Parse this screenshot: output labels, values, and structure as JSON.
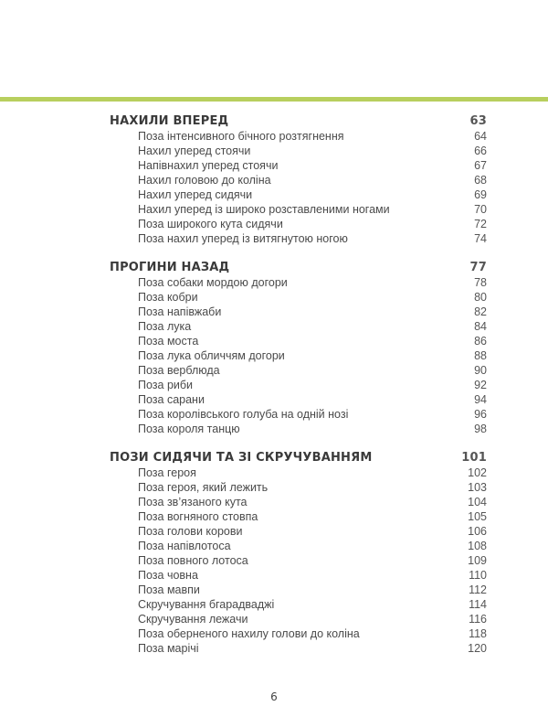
{
  "accent_color": "#b8cf5e",
  "sections": [
    {
      "title": "НАХИЛИ ВПЕРЕД",
      "page": "63",
      "items": [
        {
          "title": "Поза інтенсивного бічного розтягнення",
          "page": "64"
        },
        {
          "title": "Нахил уперед стоячи",
          "page": "66"
        },
        {
          "title": "Напівнахил уперед стоячи",
          "page": "67"
        },
        {
          "title": "Нахил головою до коліна",
          "page": "68"
        },
        {
          "title": "Нахил уперед сидячи",
          "page": "69"
        },
        {
          "title": "Нахил уперед із широко розставленими ногами",
          "page": "70"
        },
        {
          "title": "Поза широкого кута сидячи",
          "page": "72"
        },
        {
          "title": "Поза нахил уперед із витягнутою ногою",
          "page": "74"
        }
      ]
    },
    {
      "title": "ПРОГИНИ НАЗАД",
      "page": "77",
      "items": [
        {
          "title": "Поза собаки мордою догори",
          "page": "78"
        },
        {
          "title": "Поза кобри",
          "page": "80"
        },
        {
          "title": "Поза напівжаби",
          "page": "82"
        },
        {
          "title": "Поза лука",
          "page": "84"
        },
        {
          "title": "Поза моста",
          "page": "86"
        },
        {
          "title": "Поза лука обличчям догори",
          "page": "88"
        },
        {
          "title": "Поза верблюда",
          "page": "90"
        },
        {
          "title": "Поза риби",
          "page": "92"
        },
        {
          "title": "Поза сарани",
          "page": "94"
        },
        {
          "title": "Поза королівського голуба на одній нозі",
          "page": "96"
        },
        {
          "title": "Поза короля танцю",
          "page": "98"
        }
      ]
    },
    {
      "title": "ПОЗИ СИДЯЧИ ТА ЗІ СКРУЧУВАННЯМ",
      "page": "101",
      "items": [
        {
          "title": "Поза героя",
          "page": "102"
        },
        {
          "title": "Поза героя, який лежить",
          "page": "103"
        },
        {
          "title": "Поза зв’язаного кута",
          "page": "104"
        },
        {
          "title": "Поза вогняного стовпа",
          "page": "105"
        },
        {
          "title": "Поза голови корови",
          "page": "106"
        },
        {
          "title": "Поза напівлотоса",
          "page": "108"
        },
        {
          "title": "Поза повного лотоса",
          "page": "109"
        },
        {
          "title": "Поза човна",
          "page": "110"
        },
        {
          "title": "Поза мавпи",
          "page": "112"
        },
        {
          "title": "Скручування бгарадваджі",
          "page": "114"
        },
        {
          "title": "Скручування лежачи",
          "page": "116"
        },
        {
          "title": "Поза оберненого нахилу голови до коліна",
          "page": "118"
        },
        {
          "title": "Поза марічі",
          "page": "120"
        }
      ]
    }
  ],
  "page_number": "6"
}
